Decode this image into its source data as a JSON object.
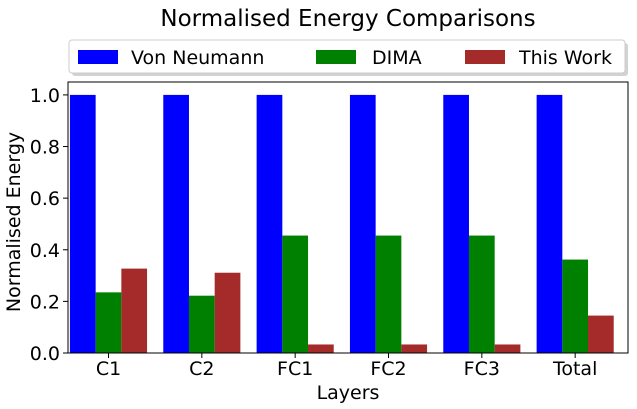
{
  "chart_data": {
    "type": "bar",
    "title": "Normalised Energy Comparisons",
    "xlabel": "Layers",
    "ylabel": "Normalised Energy",
    "ylim": [
      0,
      1.05
    ],
    "yticks": [
      "0.0",
      "0.2",
      "0.4",
      "0.6",
      "0.8",
      "1.0"
    ],
    "ytick_values": [
      0,
      0.2,
      0.4,
      0.6,
      0.8,
      1.0
    ],
    "categories": [
      "C1",
      "C2",
      "FC1",
      "FC2",
      "FC3",
      "Total"
    ],
    "series": [
      {
        "name": "Von Neumann",
        "color": "#0000ff",
        "values": [
          1.0,
          1.0,
          1.0,
          1.0,
          1.0,
          1.0
        ]
      },
      {
        "name": "DIMA",
        "color": "#008000",
        "values": [
          0.235,
          0.222,
          0.455,
          0.455,
          0.455,
          0.362
        ]
      },
      {
        "name": "This Work",
        "color": "#a52a2a",
        "values": [
          0.327,
          0.311,
          0.033,
          0.033,
          0.033,
          0.145
        ]
      }
    ],
    "legend_position": "top-center",
    "grid": false
  }
}
